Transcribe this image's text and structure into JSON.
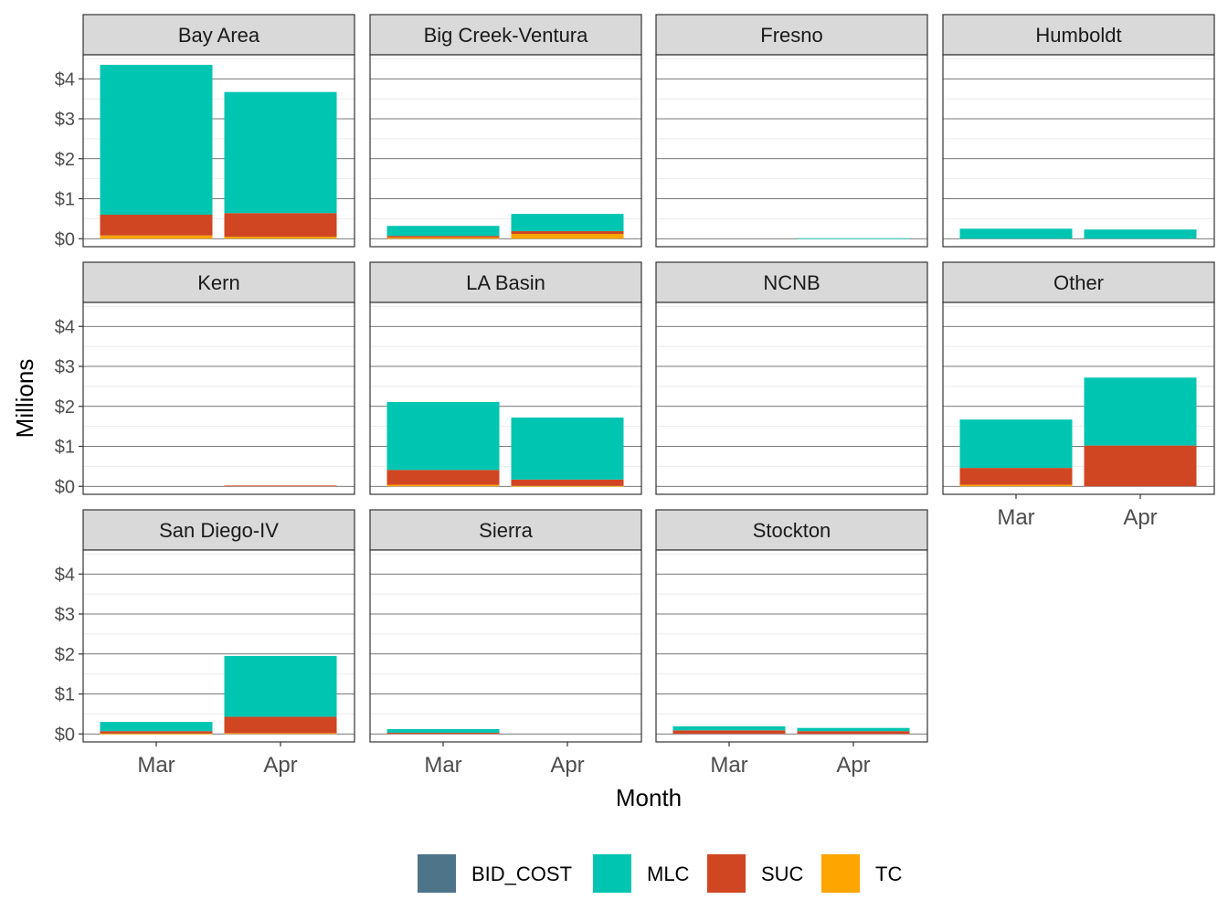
{
  "chart_data": {
    "type": "bar",
    "stacked": true,
    "facet": "region",
    "xlabel": "Month",
    "ylabel": "Millions",
    "categories": [
      "Mar",
      "Apr"
    ],
    "y_ticks": [
      0,
      1,
      2,
      3,
      4
    ],
    "y_tick_labels": [
      "$0",
      "$1",
      "$2",
      "$3",
      "$4"
    ],
    "ylim": [
      -0.2,
      4.6
    ],
    "grid": true,
    "legend_position": "bottom",
    "series": [
      {
        "name": "BID_COST",
        "color": "#4E7489"
      },
      {
        "name": "MLC",
        "color": "#00C5B1"
      },
      {
        "name": "SUC",
        "color": "#D04622"
      },
      {
        "name": "TC",
        "color": "#FFA500"
      }
    ],
    "panels": [
      {
        "name": "Bay Area",
        "values": {
          "BID_COST": [
            0,
            0
          ],
          "MLC": [
            3.75,
            3.03
          ],
          "SUC": [
            0.52,
            0.59
          ],
          "TC": [
            0.08,
            0.05
          ]
        }
      },
      {
        "name": "Big Creek-Ventura",
        "values": {
          "BID_COST": [
            0,
            0
          ],
          "MLC": [
            0.25,
            0.43
          ],
          "SUC": [
            0.04,
            0.07
          ],
          "TC": [
            0.03,
            0.12
          ]
        }
      },
      {
        "name": "Fresno",
        "values": {
          "BID_COST": [
            0,
            0
          ],
          "MLC": [
            0,
            0.01
          ],
          "SUC": [
            0,
            0
          ],
          "TC": [
            0,
            0
          ]
        }
      },
      {
        "name": "Humboldt",
        "values": {
          "BID_COST": [
            0,
            0
          ],
          "MLC": [
            0.25,
            0.23
          ],
          "SUC": [
            0,
            0
          ],
          "TC": [
            0,
            0
          ]
        }
      },
      {
        "name": "Kern",
        "values": {
          "BID_COST": [
            0,
            0
          ],
          "MLC": [
            0,
            0
          ],
          "SUC": [
            0,
            0.02
          ],
          "TC": [
            0,
            0
          ]
        }
      },
      {
        "name": "LA Basin",
        "values": {
          "BID_COST": [
            0,
            0
          ],
          "MLC": [
            1.7,
            1.55
          ],
          "SUC": [
            0.37,
            0.16
          ],
          "TC": [
            0.04,
            0.01
          ]
        }
      },
      {
        "name": "NCNB",
        "values": {
          "BID_COST": [
            0,
            0
          ],
          "MLC": [
            0,
            0
          ],
          "SUC": [
            0,
            0
          ],
          "TC": [
            0,
            0
          ]
        }
      },
      {
        "name": "Other",
        "values": {
          "BID_COST": [
            0,
            0
          ],
          "MLC": [
            1.21,
            1.7
          ],
          "SUC": [
            0.42,
            1.02
          ],
          "TC": [
            0.04,
            0
          ]
        }
      },
      {
        "name": "San Diego-IV",
        "values": {
          "BID_COST": [
            0,
            0
          ],
          "MLC": [
            0.23,
            1.52
          ],
          "SUC": [
            0.06,
            0.41
          ],
          "TC": [
            0.01,
            0.02
          ]
        }
      },
      {
        "name": "Sierra",
        "values": {
          "BID_COST": [
            0,
            0
          ],
          "MLC": [
            0.09,
            0
          ],
          "SUC": [
            0.03,
            0
          ],
          "TC": [
            0,
            0
          ]
        }
      },
      {
        "name": "Stockton",
        "values": {
          "BID_COST": [
            0,
            0
          ],
          "MLC": [
            0.1,
            0.08
          ],
          "SUC": [
            0.09,
            0.07
          ],
          "TC": [
            0,
            0
          ]
        }
      }
    ]
  }
}
